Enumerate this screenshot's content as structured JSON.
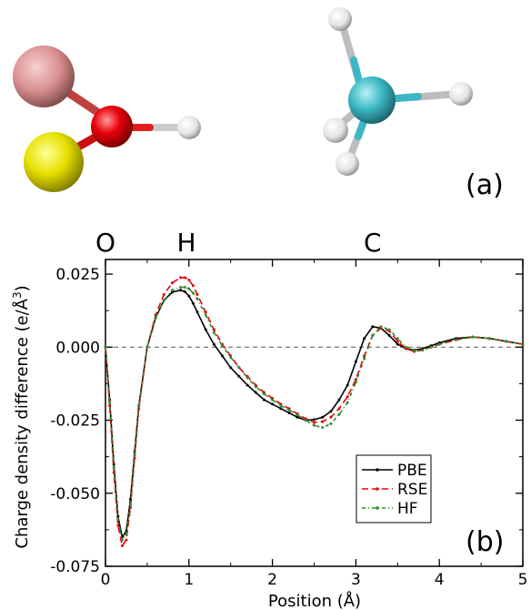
{
  "panel_a_label": "(a)",
  "molecule_colors": {
    "oxygen": "#e8000b",
    "hydrogen": "#ffffff",
    "carbon": "#3bb8c4",
    "pink_atom": "#e0a0a0",
    "yellow_atom": "#e8e000",
    "bond_highlight": "#ff4040"
  },
  "chart_data": {
    "type": "line",
    "panel_label": "(b)",
    "xlabel": "Position (Å)",
    "ylabel_prefix": "Charge density difference (e/Å",
    "ylabel_exp": "3",
    "ylabel_suffix": ")",
    "xlim": [
      0,
      5
    ],
    "ylim": [
      -0.075,
      0.03
    ],
    "xticks": [
      0,
      1,
      2,
      3,
      4,
      5
    ],
    "xtick_labels": [
      "0",
      "1",
      "2",
      "3",
      "4",
      "5"
    ],
    "yticks": [
      -0.075,
      -0.05,
      -0.025,
      0.0,
      0.025
    ],
    "ytick_labels": [
      "-0.075",
      "-0.050",
      "-0.025",
      "0.000",
      "0.025"
    ],
    "atom_markers": [
      {
        "label": "O",
        "x": 0.0
      },
      {
        "label": "H",
        "x": 0.97
      },
      {
        "label": "C",
        "x": 3.2
      }
    ],
    "reference_line_y": 0.0,
    "legend_placement": "bottom-right",
    "series": [
      {
        "name": "PBE",
        "color": "#000000",
        "dash": "",
        "x": [
          0.0,
          0.05,
          0.1,
          0.15,
          0.2,
          0.25,
          0.3,
          0.35,
          0.4,
          0.5,
          0.6,
          0.7,
          0.8,
          0.9,
          0.95,
          1.0,
          1.05,
          1.1,
          1.2,
          1.3,
          1.4,
          1.5,
          1.6,
          1.7,
          1.8,
          1.9,
          2.0,
          2.1,
          2.2,
          2.3,
          2.4,
          2.5,
          2.6,
          2.7,
          2.8,
          2.9,
          3.0,
          3.1,
          3.2,
          3.3,
          3.4,
          3.5,
          3.6,
          3.7,
          3.8,
          3.9,
          4.0,
          4.2,
          4.4,
          4.6,
          4.8,
          5.0
        ],
        "y": [
          0.0,
          -0.018,
          -0.04,
          -0.058,
          -0.065,
          -0.063,
          -0.052,
          -0.036,
          -0.02,
          0.0,
          0.01,
          0.016,
          0.0188,
          0.0195,
          0.019,
          0.0175,
          0.015,
          0.012,
          0.006,
          0.001,
          -0.003,
          -0.007,
          -0.01,
          -0.013,
          -0.0155,
          -0.018,
          -0.0195,
          -0.021,
          -0.0225,
          -0.024,
          -0.025,
          -0.0248,
          -0.024,
          -0.022,
          -0.018,
          -0.013,
          -0.005,
          0.003,
          0.007,
          0.0065,
          0.004,
          0.001,
          -0.0005,
          -0.001,
          -0.0005,
          0.0005,
          0.0015,
          0.003,
          0.0035,
          0.003,
          0.002,
          0.001
        ]
      },
      {
        "name": "RSE",
        "color": "#e8000b",
        "dash": "7,4",
        "x": [
          0.0,
          0.05,
          0.1,
          0.15,
          0.2,
          0.25,
          0.3,
          0.35,
          0.4,
          0.5,
          0.6,
          0.7,
          0.8,
          0.9,
          0.95,
          1.0,
          1.05,
          1.1,
          1.2,
          1.3,
          1.4,
          1.5,
          1.6,
          1.7,
          1.8,
          1.9,
          2.0,
          2.1,
          2.2,
          2.3,
          2.4,
          2.5,
          2.6,
          2.7,
          2.8,
          2.9,
          3.0,
          3.1,
          3.2,
          3.3,
          3.4,
          3.5,
          3.6,
          3.7,
          3.8,
          3.9,
          4.0,
          4.2,
          4.4,
          4.6,
          4.8,
          5.0
        ],
        "y": [
          0.0,
          -0.02,
          -0.043,
          -0.061,
          -0.068,
          -0.066,
          -0.055,
          -0.038,
          -0.021,
          0.0,
          0.011,
          0.018,
          0.022,
          0.0238,
          0.0238,
          0.023,
          0.021,
          0.018,
          0.012,
          0.006,
          0.001,
          -0.003,
          -0.007,
          -0.01,
          -0.013,
          -0.0155,
          -0.0175,
          -0.0195,
          -0.021,
          -0.0228,
          -0.0245,
          -0.0258,
          -0.0255,
          -0.024,
          -0.021,
          -0.017,
          -0.011,
          -0.003,
          0.004,
          0.0065,
          0.0055,
          0.002,
          -0.0005,
          -0.0015,
          -0.001,
          0.0,
          0.001,
          0.0025,
          0.0035,
          0.003,
          0.002,
          0.001
        ]
      },
      {
        "name": "HF",
        "color": "#2e8b2e",
        "dash": "4,3,1,3",
        "x": [
          0.0,
          0.05,
          0.1,
          0.15,
          0.2,
          0.25,
          0.3,
          0.35,
          0.4,
          0.5,
          0.6,
          0.7,
          0.8,
          0.9,
          0.95,
          1.0,
          1.05,
          1.1,
          1.2,
          1.3,
          1.4,
          1.5,
          1.6,
          1.7,
          1.8,
          1.9,
          2.0,
          2.1,
          2.2,
          2.3,
          2.4,
          2.5,
          2.6,
          2.7,
          2.8,
          2.9,
          3.0,
          3.1,
          3.2,
          3.3,
          3.4,
          3.5,
          3.6,
          3.7,
          3.8,
          3.9,
          4.0,
          4.2,
          4.4,
          4.6,
          4.8,
          5.0
        ],
        "y": [
          0.0,
          -0.019,
          -0.041,
          -0.059,
          -0.066,
          -0.064,
          -0.054,
          -0.037,
          -0.02,
          0.0,
          0.01,
          0.016,
          0.0195,
          0.0205,
          0.0205,
          0.02,
          0.0185,
          0.0165,
          0.011,
          0.005,
          0.0005,
          -0.0035,
          -0.007,
          -0.0105,
          -0.0135,
          -0.016,
          -0.018,
          -0.02,
          -0.0215,
          -0.0232,
          -0.025,
          -0.0268,
          -0.0275,
          -0.0262,
          -0.023,
          -0.019,
          -0.012,
          -0.004,
          0.004,
          0.007,
          0.006,
          0.003,
          0.0,
          -0.0012,
          -0.001,
          0.0,
          0.001,
          0.0025,
          0.0035,
          0.003,
          0.002,
          0.001
        ]
      }
    ]
  }
}
